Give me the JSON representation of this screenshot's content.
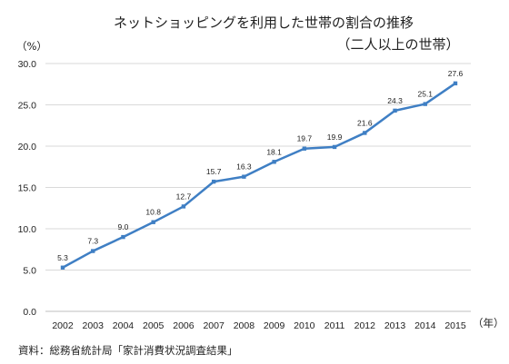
{
  "chart_data": {
    "type": "line",
    "title": "ネットショッピングを利用した世帯の割合の推移",
    "subtitle": "（二人以上の世帯）",
    "xlabel": "（年）",
    "ylabel": "（%）",
    "x": [
      "2002",
      "2003",
      "2004",
      "2005",
      "2006",
      "2007",
      "2008",
      "2009",
      "2010",
      "2011",
      "2012",
      "2013",
      "2014",
      "2015"
    ],
    "series": [
      {
        "values": [
          5.3,
          7.3,
          9.0,
          10.8,
          12.7,
          15.7,
          16.3,
          18.1,
          19.7,
          19.9,
          21.6,
          24.3,
          25.1,
          27.6
        ]
      }
    ],
    "data_labels": [
      "5.3",
      "7.3",
      "9.0",
      "10.8",
      "12.7",
      "15.7",
      "16.3",
      "18.1",
      "19.7",
      "19.9",
      "21.6",
      "24.3",
      "25.1",
      "27.6"
    ],
    "ylim": [
      0,
      30
    ],
    "yticks": [
      "0.0",
      "5.0",
      "10.0",
      "15.0",
      "20.0",
      "25.0",
      "30.0"
    ],
    "grid": true,
    "line_color": "#3f7fc4",
    "grid_color": "#d9d9d9",
    "source": "資料：総務省統計局「家計消費状況調査結果」"
  }
}
